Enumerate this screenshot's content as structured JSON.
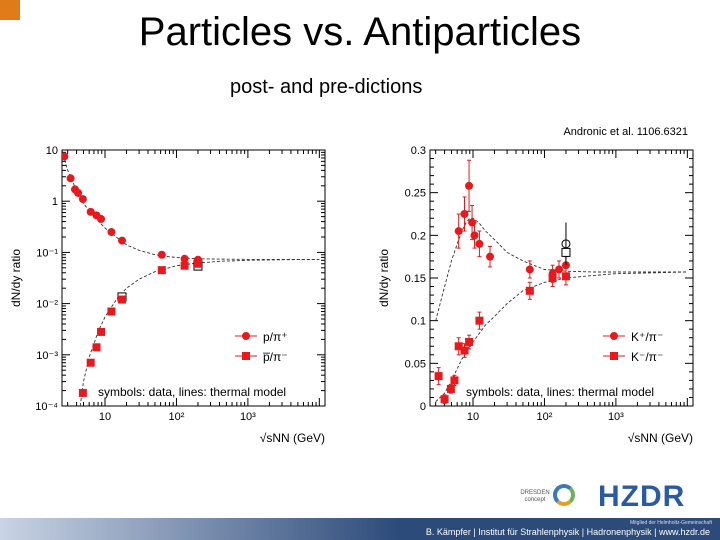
{
  "slide": {
    "title": "Particles vs. Antiparticles",
    "subtitle": "post- and pre-dictions",
    "citation": "Andronic et al. 1106.6321"
  },
  "footer": {
    "top": "Mitglied der Helmholtz-Gemeinschaft",
    "text": "B. Kämpfer | Institut für Strahlenphysik | Hadronenphysik | www.hzdr.de",
    "logo_dresden": "DRESDEN concept",
    "logo_hzdr": "HZDR"
  },
  "colors": {
    "marker": "#e8191d",
    "model": "#333333",
    "corner": "#e07b1a",
    "footer": "#2c4a7a"
  },
  "chart_data": [
    {
      "type": "scatter",
      "xscale": "log",
      "yscale": "log",
      "xlim": [
        2.5,
        12000
      ],
      "ylim": [
        0.0001,
        10
      ],
      "xticks": [
        {
          "v": 10,
          "label": "10"
        },
        {
          "v": 100,
          "label": "10²"
        },
        {
          "v": 1000,
          "label": "10³"
        }
      ],
      "yticks": [
        {
          "v": 10,
          "label": "10"
        },
        {
          "v": 1,
          "label": "1"
        },
        {
          "v": 0.1,
          "label": "10⁻¹"
        },
        {
          "v": 0.01,
          "label": "10⁻²"
        },
        {
          "v": 0.001,
          "label": "10⁻³"
        },
        {
          "v": 0.0001,
          "label": "10⁻⁴"
        }
      ],
      "xlabel": "√sNN (GeV)",
      "ylabel": "dN/dy ratio",
      "note": "symbols: data, lines: thermal model",
      "legend_position": "bottom-right",
      "series": [
        {
          "name": "p/π⁺",
          "marker": "circle",
          "points": [
            [
              2.7,
              7.5
            ],
            [
              3.3,
              2.8
            ],
            [
              3.8,
              1.7
            ],
            [
              4.2,
              1.45
            ],
            [
              4.9,
              1.1
            ],
            [
              6.3,
              0.62
            ],
            [
              7.6,
              0.53
            ],
            [
              8.8,
              0.45
            ],
            [
              12.3,
              0.25
            ],
            [
              17.3,
              0.17
            ],
            [
              62.4,
              0.09
            ],
            [
              130,
              0.075
            ],
            [
              200,
              0.072
            ]
          ],
          "open": [
            [
              200,
              0.068
            ]
          ]
        },
        {
          "name": "p̅/π⁻",
          "marker": "square",
          "points": [
            [
              4.9,
              0.00018
            ],
            [
              6.3,
              0.0007
            ],
            [
              7.6,
              0.0014
            ],
            [
              8.8,
              0.0028
            ],
            [
              12.3,
              0.007
            ],
            [
              17.3,
              0.012
            ],
            [
              62.4,
              0.045
            ],
            [
              130,
              0.055
            ],
            [
              200,
              0.06
            ]
          ],
          "open": [
            [
              17.3,
              0.0135
            ],
            [
              200,
              0.054
            ]
          ]
        }
      ],
      "model": [
        {
          "name": "p/π⁺ thermal model",
          "x": [
            2.5,
            3,
            4,
            5,
            7,
            10,
            15,
            20,
            30,
            50,
            80,
            120,
            200,
            400,
            1000,
            3000,
            10000
          ],
          "y": [
            10,
            4,
            1.6,
            0.9,
            0.5,
            0.3,
            0.19,
            0.14,
            0.11,
            0.09,
            0.082,
            0.078,
            0.075,
            0.074,
            0.073,
            0.073,
            0.073
          ]
        },
        {
          "name": "p̅/π⁻ thermal model",
          "x": [
            4.5,
            5,
            6,
            8,
            10,
            15,
            20,
            30,
            50,
            100,
            200,
            400,
            1000,
            3000,
            10000
          ],
          "y": [
            0.0001,
            0.0003,
            0.0009,
            0.0028,
            0.0055,
            0.013,
            0.02,
            0.03,
            0.042,
            0.055,
            0.062,
            0.067,
            0.07,
            0.072,
            0.073
          ]
        }
      ]
    },
    {
      "type": "scatter",
      "xscale": "log",
      "yscale": "linear",
      "xlim": [
        2.5,
        12000
      ],
      "ylim": [
        0,
        0.3
      ],
      "xticks": [
        {
          "v": 10,
          "label": "10"
        },
        {
          "v": 100,
          "label": "10²"
        },
        {
          "v": 1000,
          "label": "10³"
        }
      ],
      "yticks": [
        {
          "v": 0,
          "label": "0"
        },
        {
          "v": 0.05,
          "label": "0.05"
        },
        {
          "v": 0.1,
          "label": "0.1"
        },
        {
          "v": 0.15,
          "label": "0.15"
        },
        {
          "v": 0.2,
          "label": "0.2"
        },
        {
          "v": 0.25,
          "label": "0.25"
        },
        {
          "v": 0.3,
          "label": "0.3"
        }
      ],
      "xlabel": "√sNN (GeV)",
      "ylabel": "dN/dy ratio",
      "note": "symbols: data, lines: thermal model",
      "legend_position": "bottom-right",
      "series": [
        {
          "name": "K⁺/π⁻",
          "marker": "circle",
          "points": [
            [
              6.3,
              0.205
            ],
            [
              7.6,
              0.225
            ],
            [
              8.8,
              0.258
            ],
            [
              9.7,
              0.215
            ],
            [
              10.5,
              0.2
            ],
            [
              12.3,
              0.19
            ],
            [
              17.3,
              0.175
            ],
            [
              62.4,
              0.16
            ],
            [
              130,
              0.155
            ],
            [
              160,
              0.16
            ],
            [
              200,
              0.165
            ]
          ],
          "err": [
            0.02,
            0.02,
            0.03,
            0.02,
            0.015,
            0.015,
            0.012,
            0.01,
            0.01,
            0.01,
            0.01
          ],
          "open": [
            [
              200,
              0.19
            ]
          ],
          "open_err": [
            0.025
          ]
        },
        {
          "name": "K⁻/π⁻",
          "marker": "square",
          "points": [
            [
              3.3,
              0.035
            ],
            [
              4.0,
              0.008
            ],
            [
              4.9,
              0.02
            ],
            [
              5.5,
              0.03
            ],
            [
              6.3,
              0.07
            ],
            [
              7.6,
              0.065
            ],
            [
              8.8,
              0.075
            ],
            [
              12.3,
              0.1
            ],
            [
              62.4,
              0.135
            ],
            [
              130,
              0.15
            ],
            [
              200,
              0.152
            ]
          ],
          "err": [
            0.01,
            0.005,
            0.005,
            0.006,
            0.01,
            0.008,
            0.008,
            0.01,
            0.01,
            0.01,
            0.01
          ],
          "open": [
            [
              200,
              0.18
            ]
          ],
          "open_err": [
            0.015
          ]
        }
      ],
      "model": [
        {
          "name": "K⁺/π⁺ thermal model",
          "x": [
            3,
            4,
            5,
            6,
            7,
            8,
            9,
            10,
            12,
            15,
            20,
            30,
            50,
            100,
            200,
            500,
            1000,
            3000,
            10000
          ],
          "y": [
            0.1,
            0.14,
            0.17,
            0.19,
            0.205,
            0.215,
            0.22,
            0.22,
            0.215,
            0.205,
            0.195,
            0.18,
            0.17,
            0.16,
            0.158,
            0.157,
            0.157,
            0.157,
            0.157
          ]
        },
        {
          "name": "K⁻/π⁻ thermal model",
          "x": [
            3,
            4,
            5,
            7,
            10,
            15,
            20,
            30,
            50,
            100,
            200,
            500,
            1000,
            3000,
            10000
          ],
          "y": [
            0.005,
            0.015,
            0.03,
            0.055,
            0.075,
            0.095,
            0.105,
            0.12,
            0.135,
            0.145,
            0.15,
            0.153,
            0.155,
            0.156,
            0.157
          ]
        }
      ]
    }
  ]
}
